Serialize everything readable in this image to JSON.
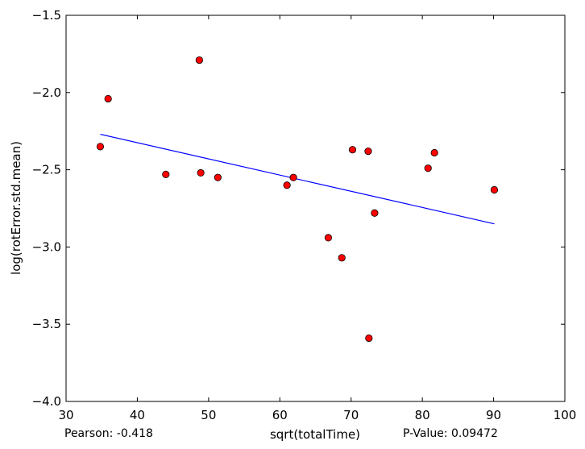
{
  "chart_data": {
    "type": "scatter",
    "title": "",
    "xlabel": "sqrt(totalTime)",
    "ylabel": "log(rotError.std.mean)",
    "xlim": [
      30,
      100
    ],
    "ylim": [
      -4.0,
      -1.5
    ],
    "x_ticks": [
      30,
      40,
      50,
      60,
      70,
      80,
      90,
      100
    ],
    "x_tick_labels": [
      "30",
      "40",
      "50",
      "60",
      "70",
      "80",
      "90",
      "100"
    ],
    "y_ticks": [
      -4.0,
      -3.5,
      -3.0,
      -2.5,
      -2.0,
      -1.5
    ],
    "y_tick_labels": [
      "−4.0",
      "−3.5",
      "−3.0",
      "−2.5",
      "−2.0",
      "−1.5"
    ],
    "grid": false,
    "series": [
      {
        "marker_color": "#ff0000",
        "points": [
          {
            "x": 34.8,
            "y": -2.35
          },
          {
            "x": 35.9,
            "y": -2.04
          },
          {
            "x": 44.0,
            "y": -2.53
          },
          {
            "x": 48.7,
            "y": -1.79
          },
          {
            "x": 48.9,
            "y": -2.52
          },
          {
            "x": 51.3,
            "y": -2.55
          },
          {
            "x": 61.0,
            "y": -2.6
          },
          {
            "x": 61.9,
            "y": -2.55
          },
          {
            "x": 66.8,
            "y": -2.94
          },
          {
            "x": 68.7,
            "y": -3.07
          },
          {
            "x": 70.2,
            "y": -2.37
          },
          {
            "x": 72.4,
            "y": -2.38
          },
          {
            "x": 72.5,
            "y": -3.59
          },
          {
            "x": 73.3,
            "y": -2.78
          },
          {
            "x": 80.8,
            "y": -2.49
          },
          {
            "x": 81.7,
            "y": -2.39
          },
          {
            "x": 90.1,
            "y": -2.63
          }
        ]
      }
    ],
    "fit_line": {
      "color": "#0000ff",
      "points": [
        {
          "x": 34.8,
          "y": -2.27
        },
        {
          "x": 90.1,
          "y": -2.85
        }
      ]
    },
    "annotations": {
      "pearson": "Pearson: -0.418",
      "pvalue": "P-Value: 0.09472"
    }
  }
}
